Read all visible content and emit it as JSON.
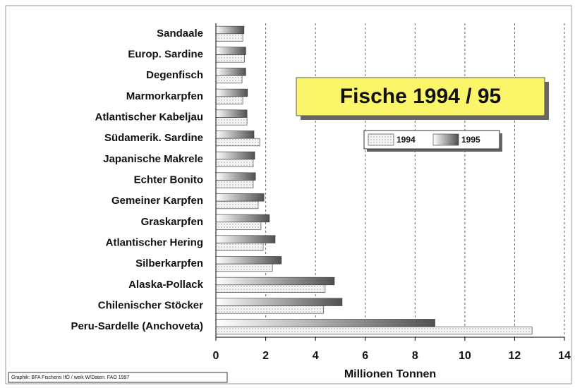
{
  "chart_data": {
    "type": "barh",
    "title": "Fische 1994 / 95",
    "xlabel": "Millionen Tonnen",
    "source": "Graphik: BFA Fischerei IfÖ / weik W/Daten: FAO 1997",
    "categories": [
      "Sandaale",
      "Europ. Sardine",
      "Degenfisch",
      "Marmorkarpfen",
      "Atlantischer Kabeljau",
      "Südamerik. Sardine",
      "Japanische Makrele",
      "Echter Bonito",
      "Gemeiner Karpfen",
      "Graskarpfen",
      "Atlantischer Hering",
      "Silberkarpfen",
      "Alaska-Pollack",
      "Chilenischer Stöcker",
      "Peru-Sardelle (Anchoveta)"
    ],
    "series": [
      {
        "name": "1995",
        "color": "#505050",
        "values": [
          1.13,
          1.2,
          1.2,
          1.27,
          1.25,
          1.53,
          1.56,
          1.59,
          1.93,
          2.15,
          2.38,
          2.63,
          4.76,
          5.07,
          8.8
        ]
      },
      {
        "name": "1994",
        "color": "#d8d8d8",
        "values": [
          1.08,
          1.15,
          1.05,
          1.08,
          1.25,
          1.76,
          1.5,
          1.5,
          1.7,
          1.81,
          1.9,
          2.27,
          4.39,
          4.33,
          12.7
        ]
      }
    ],
    "xlim": [
      0,
      14
    ],
    "xticks": [
      0,
      2,
      4,
      6,
      8,
      10,
      12,
      14
    ],
    "grid": true,
    "legend": "center"
  }
}
